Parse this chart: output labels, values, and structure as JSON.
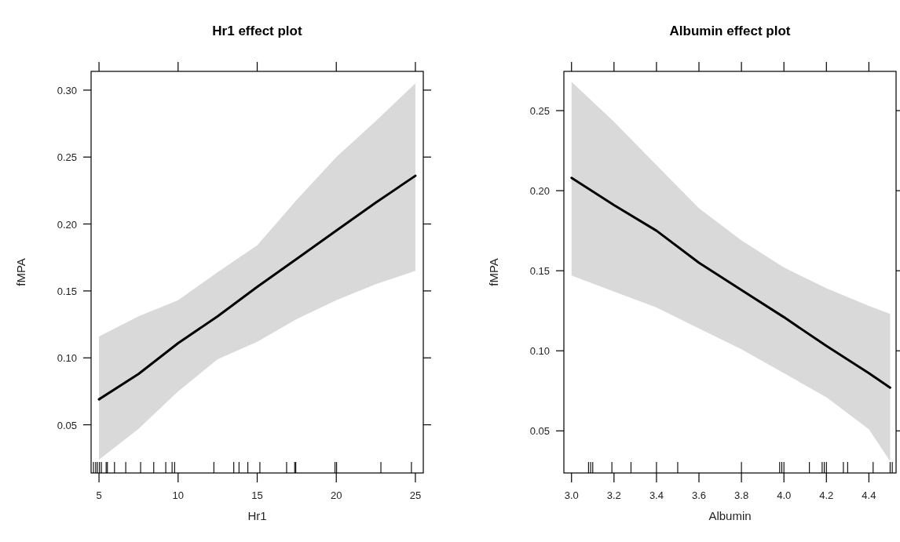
{
  "chart_data": [
    {
      "type": "line",
      "title": "Hr1 effect plot",
      "xlabel": "Hr1",
      "ylabel": "fMPA",
      "xlim": [
        4.5,
        25.5
      ],
      "ylim": [
        0.014,
        0.314
      ],
      "xticks": [
        5,
        10,
        15,
        20,
        25,
        {
          "value": 4.65,
          "label": null
        },
        {
          "value": 4.79,
          "label": null
        },
        {
          "value": 4.9,
          "label": null
        },
        {
          "value": 5.03,
          "label": null
        },
        {
          "value": 5.15,
          "label": null
        },
        {
          "value": 5.45,
          "label": null
        },
        {
          "value": 5.53,
          "label": null
        },
        {
          "value": 5.98,
          "label": null
        },
        {
          "value": 6.69,
          "label": null
        },
        {
          "value": 7.63,
          "label": null
        },
        {
          "value": 8.46,
          "label": null
        },
        {
          "value": 9.22,
          "label": null
        },
        {
          "value": 9.62,
          "label": null
        },
        {
          "value": 9.78,
          "label": null
        },
        {
          "value": 12.26,
          "label": null
        },
        {
          "value": 13.52,
          "label": null
        },
        {
          "value": 13.85,
          "label": null
        },
        {
          "value": 14.41,
          "label": null
        },
        {
          "value": 15.17,
          "label": null
        },
        {
          "value": 16.86,
          "label": null
        },
        {
          "value": 17.37,
          "label": null
        },
        {
          "value": 17.44,
          "label": null
        },
        {
          "value": 19.92,
          "label": null
        },
        {
          "value": 20.02,
          "label": null
        },
        {
          "value": 22.82,
          "label": null
        },
        {
          "value": 24.75,
          "label": null
        }
      ],
      "yticks": [
        {
          "value": 0.05,
          "label": "0.05"
        },
        {
          "value": 0.1,
          "label": "0.10"
        },
        {
          "value": 0.15,
          "label": "0.15"
        },
        {
          "value": 0.2,
          "label": "0.20"
        },
        {
          "value": 0.25,
          "label": "0.25"
        },
        {
          "value": 0.3,
          "label": "0.30"
        }
      ],
      "series": [
        {
          "color": "#000000",
          "x": [
            5,
            7.5,
            10,
            12.5,
            15,
            17.5,
            20,
            22.5,
            25
          ],
          "values": [
            0.069,
            0.088,
            0.111,
            0.131,
            0.153,
            0.174,
            0.195,
            0.216,
            0.236
          ],
          "lower": [
            0.024,
            0.047,
            0.075,
            0.099,
            0.112,
            0.129,
            0.143,
            0.155,
            0.165
          ],
          "upper": [
            0.116,
            0.131,
            0.143,
            0.164,
            0.184,
            0.218,
            0.25,
            0.277,
            0.305
          ]
        }
      ]
    },
    {
      "type": "line",
      "title": "Albumin effect plot",
      "xlabel": "Albumin",
      "ylabel": "fMPA",
      "xlim": [
        2.964,
        4.528
      ],
      "ylim": [
        0.0237,
        0.2745
      ],
      "xticks": [
        {
          "value": 3,
          "label": "3.0"
        },
        {
          "value": 3.2,
          "label": "3.2"
        },
        {
          "value": 3.4,
          "label": "3.4"
        },
        {
          "value": 3.6,
          "label": "3.6"
        },
        {
          "value": 3.8,
          "label": "3.8"
        },
        {
          "value": 4,
          "label": "4.0"
        },
        {
          "value": 4.2,
          "label": "4.2"
        },
        {
          "value": 4.4,
          "label": "4.4"
        },
        {
          "value": 3.08,
          "label": null
        },
        {
          "value": 3.09,
          "label": null
        },
        {
          "value": 3.1,
          "label": null
        },
        {
          "value": 3.19,
          "label": null
        },
        {
          "value": 3.28,
          "label": null
        },
        {
          "value": 3.4,
          "label": null
        },
        {
          "value": 3.5,
          "label": null
        },
        {
          "value": 3.8,
          "label": null
        },
        {
          "value": 3.98,
          "label": null
        },
        {
          "value": 3.99,
          "label": null
        },
        {
          "value": 4.0,
          "label": null
        },
        {
          "value": 4.12,
          "label": null
        },
        {
          "value": 4.18,
          "label": null
        },
        {
          "value": 4.19,
          "label": null
        },
        {
          "value": 4.2,
          "label": null
        },
        {
          "value": 4.28,
          "label": null
        },
        {
          "value": 4.3,
          "label": null
        },
        {
          "value": 4.42,
          "label": null
        },
        {
          "value": 4.5,
          "label": null
        },
        {
          "value": 4.51,
          "label": null
        }
      ],
      "yticks": [
        {
          "value": 0.05,
          "label": "0.05"
        },
        {
          "value": 0.1,
          "label": "0.10"
        },
        {
          "value": 0.15,
          "label": "0.15"
        },
        {
          "value": 0.2,
          "label": "0.20"
        },
        {
          "value": 0.25,
          "label": "0.25"
        }
      ],
      "series": [
        {
          "color": "#000000",
          "x": [
            3,
            3.2,
            3.4,
            3.6,
            3.8,
            4,
            4.2,
            4.4,
            4.5
          ],
          "values": [
            0.208,
            0.191,
            0.175,
            0.155,
            0.138,
            0.121,
            0.103,
            0.086,
            0.077
          ],
          "lower": [
            0.147,
            0.137,
            0.127,
            0.114,
            0.101,
            0.086,
            0.071,
            0.051,
            0.031
          ],
          "upper": [
            0.268,
            0.243,
            0.216,
            0.189,
            0.169,
            0.152,
            0.139,
            0.128,
            0.123
          ]
        }
      ]
    }
  ]
}
